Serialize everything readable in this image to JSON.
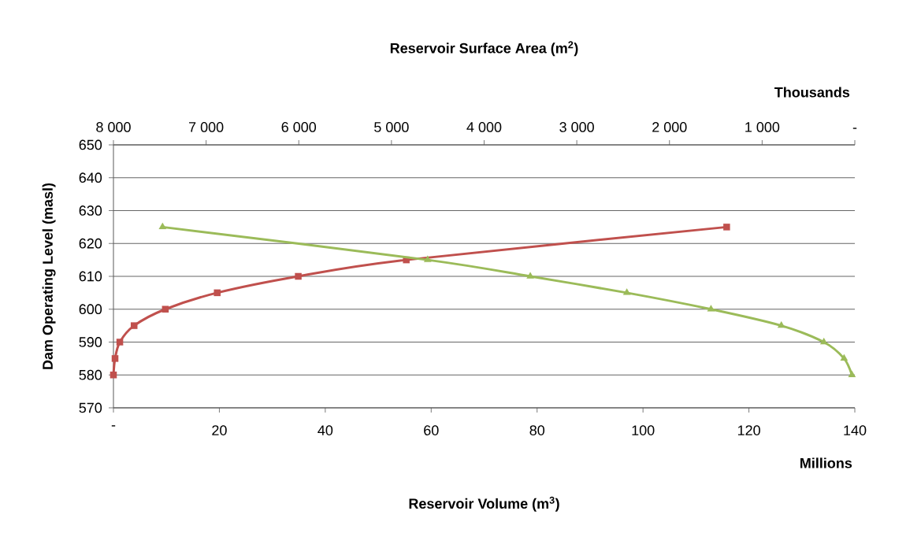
{
  "chart_data": {
    "type": "line",
    "xlabel": "Reservoir Volume (m$^{3}$)",
    "x2label": "Reservoir Surface Area (m$^{2}$)",
    "ylabel": "Dam Operating Level (masl)",
    "annotations": [
      "Thousands",
      "Millions"
    ],
    "xlim": [
      0,
      140
    ],
    "xticks": [
      {
        "value": 0,
        "label": "-"
      },
      20,
      40,
      60,
      80,
      100,
      120,
      140
    ],
    "x2lim": [
      8000,
      0
    ],
    "x2ticks": [
      {
        "value": 8000,
        "label": "8 000"
      },
      {
        "value": 7000,
        "label": "7 000"
      },
      {
        "value": 6000,
        "label": "6 000"
      },
      {
        "value": 5000,
        "label": "5 000"
      },
      {
        "value": 4000,
        "label": "4 000"
      },
      {
        "value": 3000,
        "label": "3 000"
      },
      {
        "value": 2000,
        "label": "2 000"
      },
      {
        "value": 1000,
        "label": "1 000"
      },
      {
        "value": 0,
        "label": "-"
      }
    ],
    "ylim": [
      570,
      650
    ],
    "yticks": [
      570,
      580,
      590,
      600,
      610,
      620,
      630,
      640,
      650
    ],
    "grid": "y",
    "series": [
      {
        "color": "#c0504d",
        "marker": "square",
        "x": [
          0,
          0.3,
          1.2,
          3.9,
          9.8,
          19.6,
          34.9,
          55.3,
          115.8
        ],
        "values": [
          580,
          585,
          590,
          595,
          600,
          605,
          610,
          615,
          625
        ]
      },
      {
        "color": "#9bbb59",
        "marker": "triangle",
        "axis": "x2",
        "x": [
          31,
          116,
          334,
          793,
          1552,
          2460,
          3502,
          4610,
          7470
        ],
        "values": [
          580,
          585,
          590,
          595,
          600,
          605,
          610,
          615,
          625
        ]
      }
    ]
  }
}
